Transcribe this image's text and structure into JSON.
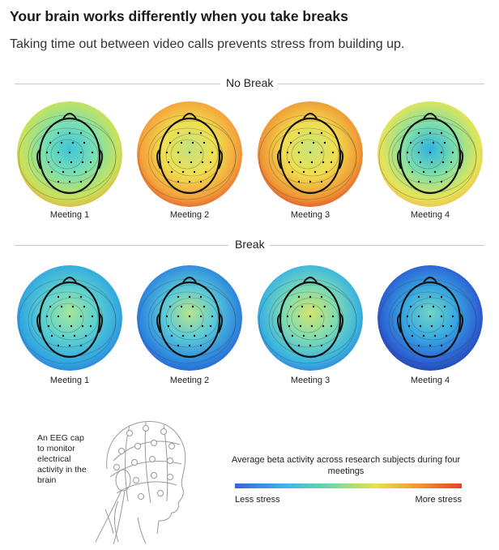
{
  "header": {
    "title": "Your brain works differently when you take breaks",
    "subtitle": "Taking time out between video calls prevents stress from building up."
  },
  "sections": [
    {
      "label": "No Break",
      "meetings": [
        {
          "label": "Meeting 1",
          "colors": [
            "#3ec7d9",
            "#7be0b0",
            "#c8e25a",
            "#eaa33a"
          ]
        },
        {
          "label": "Meeting 2",
          "colors": [
            "#c3e27c",
            "#f0e050",
            "#f4a23a",
            "#dd4a2a"
          ]
        },
        {
          "label": "Meeting 3",
          "colors": [
            "#c6e67a",
            "#f1de4e",
            "#f09a35",
            "#d8402a"
          ]
        },
        {
          "label": "Meeting 4",
          "colors": [
            "#2fb3e2",
            "#7fe0a8",
            "#e3e458",
            "#f4b34a"
          ]
        }
      ]
    },
    {
      "label": "Break",
      "meetings": [
        {
          "label": "Meeting 1",
          "colors": [
            "#a6e69a",
            "#5dd2cf",
            "#33a9e0",
            "#2f6ed8"
          ]
        },
        {
          "label": "Meeting 2",
          "colors": [
            "#b8e58a",
            "#58c9d9",
            "#2e88de",
            "#2a57cf"
          ]
        },
        {
          "label": "Meeting 3",
          "colors": [
            "#d2e46c",
            "#7fdcb2",
            "#3bb5e0",
            "#2d6fd6"
          ]
        },
        {
          "label": "Meeting 4",
          "colors": [
            "#71d6c4",
            "#36a8e2",
            "#2c62d4",
            "#20389e"
          ]
        }
      ]
    }
  ],
  "eeg": {
    "note": "An EEG cap to monitor electrical activity in the brain"
  },
  "legend": {
    "title": "Average beta activity across research subjects during four meetings",
    "low_label": "Less stress",
    "high_label": "More stress",
    "colors": [
      "#3a62d6",
      "#3eb6e8",
      "#6fd8a3",
      "#e8e24a",
      "#f29a37",
      "#e4432a"
    ]
  }
}
